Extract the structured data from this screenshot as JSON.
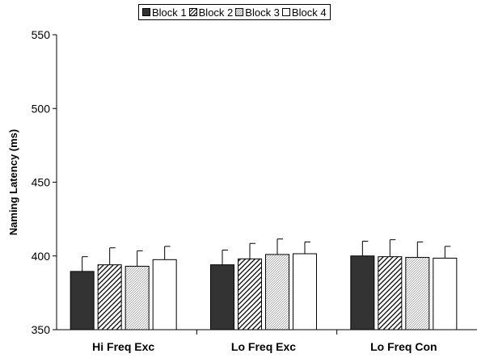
{
  "chart_data": {
    "type": "bar",
    "title": "",
    "xlabel": "",
    "ylabel": "Naming Latency (ms)",
    "ylim": [
      350,
      550
    ],
    "yticks": [
      350,
      400,
      450,
      500,
      550
    ],
    "grid": false,
    "legend_position": "top-center",
    "categories": [
      "Hi Freq Exc",
      "Lo Freq Exc",
      "Lo Freq Con"
    ],
    "series": [
      {
        "name": "Block 1",
        "fill": "solid-dark",
        "color": "#333333",
        "values": [
          389.5,
          394,
          400
        ],
        "error": [
          10,
          10,
          10
        ]
      },
      {
        "name": "Block 2",
        "fill": "diagonal-hatch",
        "color": "#ffffff",
        "values": [
          394,
          398,
          399.5
        ],
        "error": [
          11.5,
          10.5,
          11.5
        ]
      },
      {
        "name": "Block 3",
        "fill": "fine-hatch",
        "color": "#ffffff",
        "values": [
          393,
          401,
          399
        ],
        "error": [
          10.5,
          10.5,
          10.5
        ]
      },
      {
        "name": "Block 4",
        "fill": "white",
        "color": "#ffffff",
        "values": [
          397.5,
          401.5,
          398.5
        ],
        "error": [
          9,
          8,
          8
        ]
      }
    ]
  }
}
